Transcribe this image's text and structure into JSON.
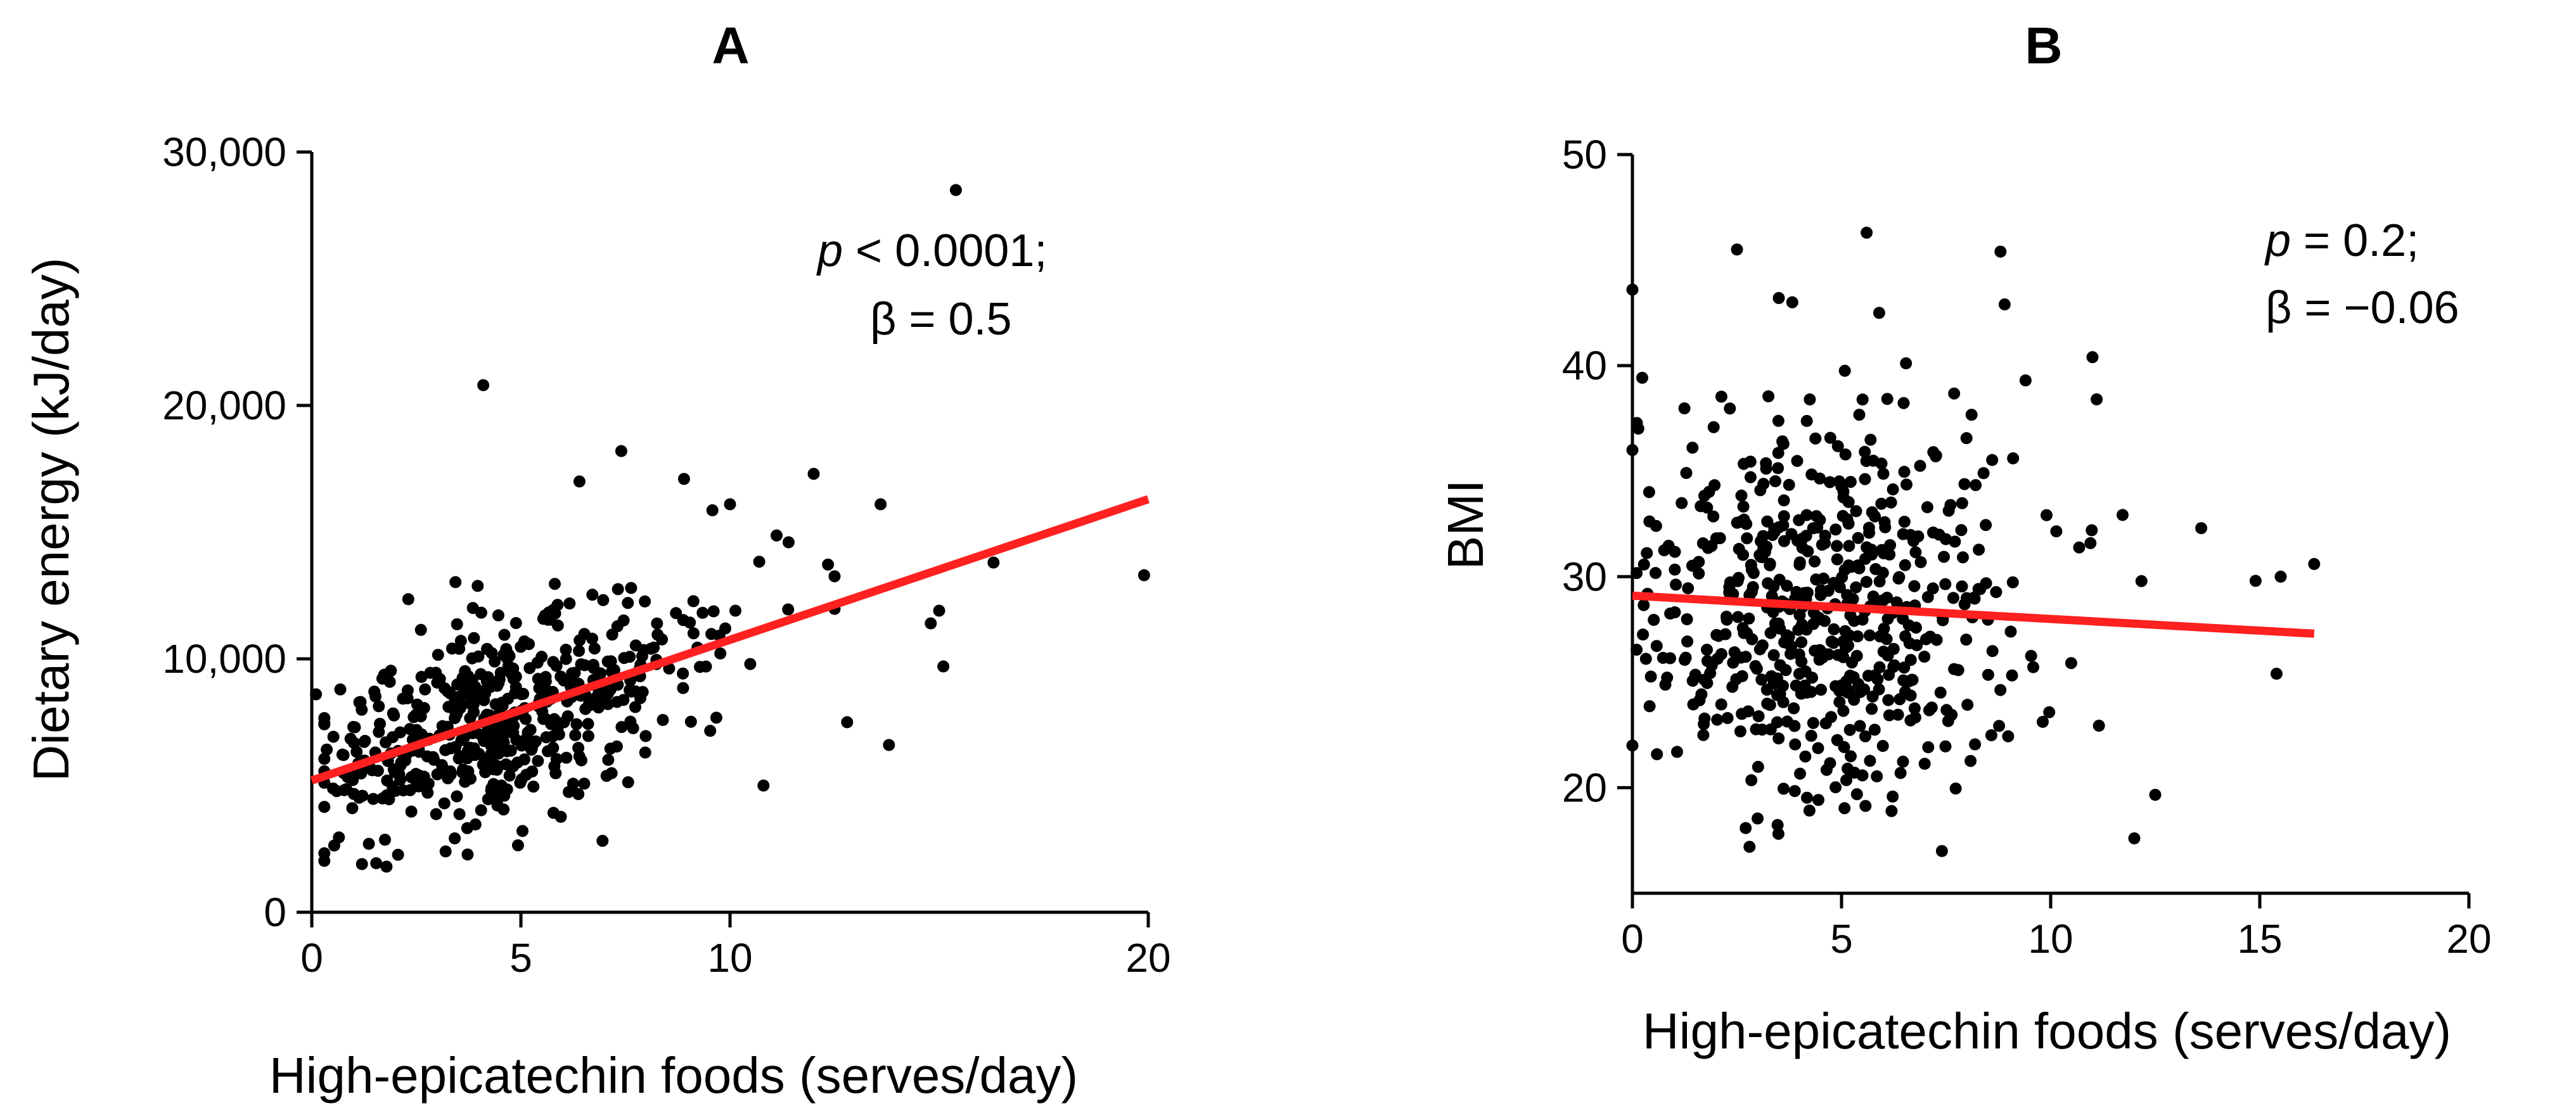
{
  "chart_data": [
    {
      "panel": "A",
      "type": "scatter",
      "title": "A",
      "xlabel": "High-epicatechin foods (serves/day)",
      "ylabel": "Dietary energy (kJ/day)",
      "xlim": [
        0,
        20
      ],
      "ylim": [
        0,
        30000
      ],
      "xticks": [
        "0",
        "5",
        "10",
        "20"
      ],
      "xtick_values": [
        0,
        5,
        10,
        20
      ],
      "yticks": [
        "0",
        "10,000",
        "20,000",
        "30,000"
      ],
      "ytick_values": [
        0,
        10000,
        20000,
        30000
      ],
      "annotation": {
        "p_symbol": "p",
        "p_text": " < 0.0001;",
        "beta_text": "β = 0.5"
      },
      "regression_line": {
        "color": "#ff2020",
        "x": [
          0,
          20
        ],
        "y": [
          5200,
          16300
        ]
      },
      "outliers": [
        {
          "x": 15.4,
          "y": 28500
        },
        {
          "x": 4.1,
          "y": 20800
        },
        {
          "x": 7.4,
          "y": 18200
        },
        {
          "x": 12.0,
          "y": 17300
        },
        {
          "x": 8.9,
          "y": 17100
        },
        {
          "x": 13.6,
          "y": 16100
        },
        {
          "x": 10.0,
          "y": 16100
        },
        {
          "x": 19.9,
          "y": 13300
        },
        {
          "x": 16.3,
          "y": 13800
        },
        {
          "x": 15.0,
          "y": 11900
        },
        {
          "x": 14.8,
          "y": 11400
        },
        {
          "x": 15.1,
          "y": 9700
        },
        {
          "x": 13.8,
          "y": 6600
        },
        {
          "x": 10.8,
          "y": 5000
        },
        {
          "x": 12.8,
          "y": 7500
        },
        {
          "x": 1.2,
          "y": 1900
        },
        {
          "x": 3.2,
          "y": 2400
        },
        {
          "x": 0.1,
          "y": 8600
        },
        {
          "x": 11.4,
          "y": 14600
        },
        {
          "x": 6.4,
          "y": 17000
        }
      ],
      "cloud": {
        "count": 520,
        "seed": 7,
        "x_mean": 4.6,
        "x_sd": 2.4,
        "x_min": 0.3,
        "x_max": 12.5,
        "intercept": 5200,
        "slope": 555,
        "y_sd": 1900,
        "y_min": 1800,
        "y_max": 16500
      },
      "point_color": "#000000"
    },
    {
      "panel": "B",
      "type": "scatter",
      "title": "B",
      "xlabel": "High-epicatechin foods (serves/day)",
      "ylabel": "BMI",
      "xlim": [
        0,
        20
      ],
      "ylim": [
        15,
        50
      ],
      "xticks": [
        "0",
        "5",
        "10",
        "15",
        "20"
      ],
      "xtick_values": [
        0,
        5,
        10,
        15,
        20
      ],
      "yticks": [
        "20",
        "30",
        "40",
        "50"
      ],
      "ytick_values": [
        20,
        30,
        40,
        50
      ],
      "annotation": {
        "p_symbol": "p",
        "p_text": " = 0.2;",
        "beta_text": "β = −0.06"
      },
      "regression_line": {
        "color": "#ff2020",
        "x": [
          0,
          16.3
        ],
        "y": [
          29.1,
          27.3
        ]
      },
      "outliers": [
        {
          "x": 0.0,
          "y": 43.6
        },
        {
          "x": 0.0,
          "y": 36.0
        },
        {
          "x": 2.5,
          "y": 45.5
        },
        {
          "x": 5.6,
          "y": 46.3
        },
        {
          "x": 8.8,
          "y": 45.4
        },
        {
          "x": 8.9,
          "y": 42.9
        },
        {
          "x": 11.0,
          "y": 40.4
        },
        {
          "x": 11.1,
          "y": 38.4
        },
        {
          "x": 13.6,
          "y": 32.3
        },
        {
          "x": 16.3,
          "y": 30.6
        },
        {
          "x": 15.4,
          "y": 25.4
        },
        {
          "x": 12.0,
          "y": 17.6
        },
        {
          "x": 7.4,
          "y": 17.0
        },
        {
          "x": 2.8,
          "y": 17.2
        },
        {
          "x": 0.0,
          "y": 22.0
        },
        {
          "x": 9.4,
          "y": 39.3
        },
        {
          "x": 5.9,
          "y": 42.5
        },
        {
          "x": 3.5,
          "y": 43.2
        },
        {
          "x": 14.9,
          "y": 29.8
        },
        {
          "x": 15.5,
          "y": 30.0
        }
      ],
      "cloud": {
        "count": 560,
        "seed": 13,
        "x_mean": 4.6,
        "x_sd": 2.5,
        "x_min": 0.1,
        "x_max": 12.5,
        "intercept": 29.1,
        "slope": -0.11,
        "y_sd": 4.4,
        "y_min": 17.5,
        "y_max": 43.0
      },
      "point_color": "#000000"
    }
  ]
}
